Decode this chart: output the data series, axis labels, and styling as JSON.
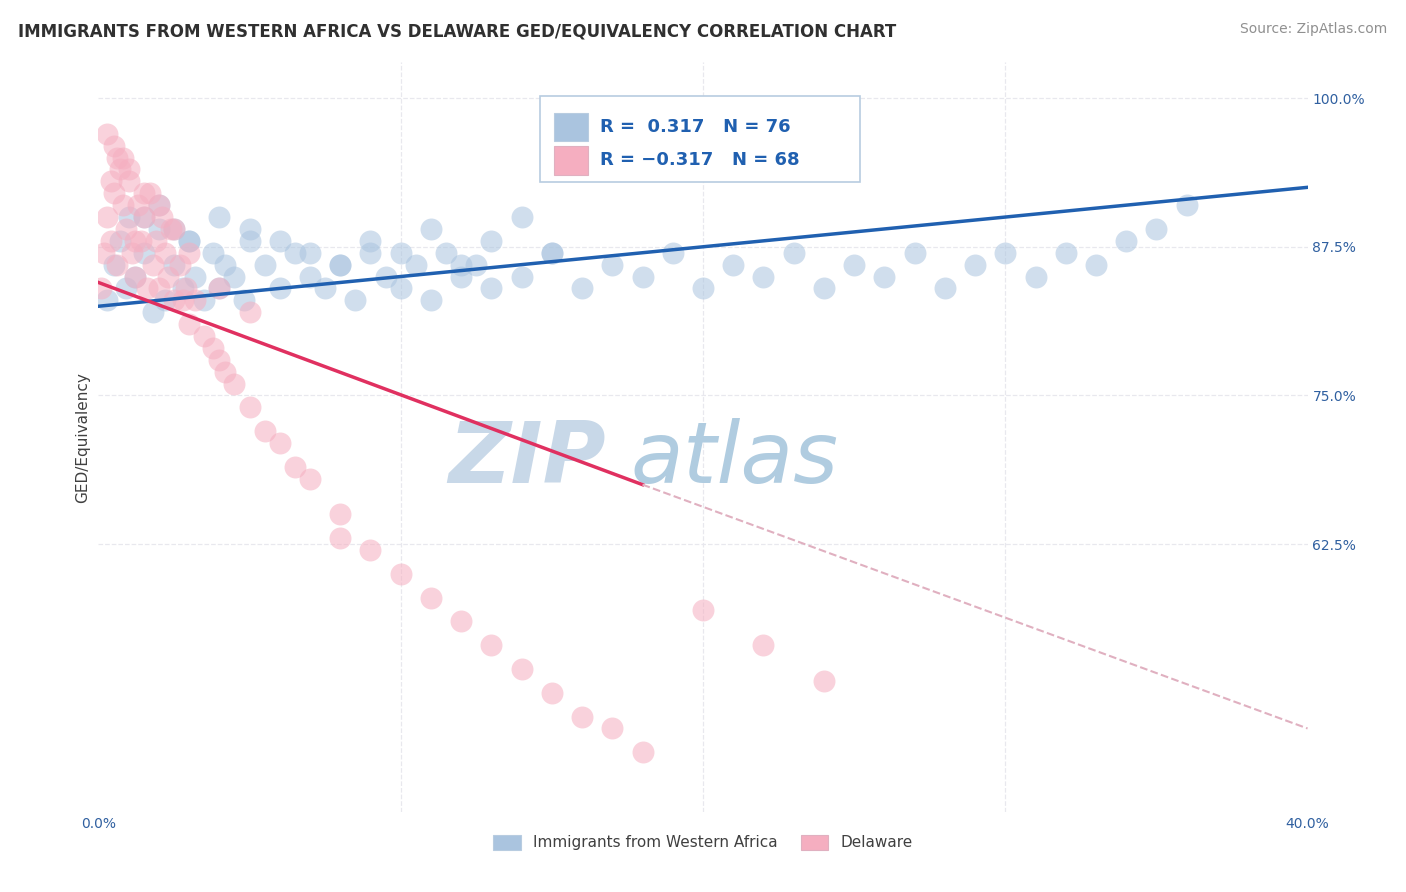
{
  "title": "IMMIGRANTS FROM WESTERN AFRICA VS DELAWARE GED/EQUIVALENCY CORRELATION CHART",
  "source_text": "Source: ZipAtlas.com",
  "ylabel": "GED/Equivalency",
  "xlim": [
    0.0,
    40.0
  ],
  "ylim": [
    40.0,
    103.0
  ],
  "blue_color": "#aac4df",
  "blue_edge_color": "#aac4df",
  "pink_color": "#f5aec0",
  "pink_edge_color": "#f5aec0",
  "trendline_blue_color": "#2060b0",
  "trendline_pink_color": "#e03060",
  "trendline_dash_color": "#e0b0c0",
  "grid_color": "#e8e8ee",
  "title_color": "#303030",
  "axis_tick_color": "#3060a0",
  "source_color": "#909090",
  "ylabel_color": "#404040",
  "legend_r_color": "#2060b0",
  "watermark_zip_color": "#c8d8e8",
  "watermark_atlas_color": "#b0cce0",
  "legend_border_color": "#b8cce0",
  "legend_bottom_label_color": "#404040",
  "blue_trendline_x0": 0.0,
  "blue_trendline_y0": 82.5,
  "blue_trendline_x1": 40.0,
  "blue_trendline_y1": 92.5,
  "pink_solid_x0": 0.0,
  "pink_solid_y0": 84.5,
  "pink_solid_x1": 18.0,
  "pink_solid_y1": 67.5,
  "pink_dash_x0": 18.0,
  "pink_dash_y0": 67.5,
  "pink_dash_x1": 40.0,
  "pink_dash_y1": 47.0,
  "blue_x": [
    0.3,
    0.5,
    0.7,
    0.9,
    1.0,
    1.2,
    1.5,
    1.8,
    2.0,
    2.2,
    2.5,
    2.8,
    3.0,
    3.2,
    3.5,
    3.8,
    4.0,
    4.2,
    4.5,
    4.8,
    5.0,
    5.5,
    6.0,
    6.5,
    7.0,
    7.5,
    8.0,
    8.5,
    9.0,
    9.5,
    10.0,
    10.5,
    11.0,
    11.5,
    12.0,
    12.5,
    13.0,
    14.0,
    15.0,
    16.0,
    17.0,
    18.0,
    19.0,
    20.0,
    21.0,
    22.0,
    23.0,
    24.0,
    25.0,
    26.0,
    27.0,
    28.0,
    29.0,
    30.0,
    31.0,
    32.0,
    33.0,
    34.0,
    35.0,
    36.0,
    1.5,
    2.0,
    2.5,
    3.0,
    4.0,
    5.0,
    6.0,
    7.0,
    8.0,
    9.0,
    10.0,
    11.0,
    12.0,
    13.0,
    14.0,
    15.0
  ],
  "blue_y": [
    83.0,
    86.0,
    88.0,
    84.0,
    90.0,
    85.0,
    87.0,
    82.0,
    89.0,
    83.0,
    86.0,
    84.0,
    88.0,
    85.0,
    83.0,
    87.0,
    84.0,
    86.0,
    85.0,
    83.0,
    88.0,
    86.0,
    84.0,
    87.0,
    85.0,
    84.0,
    86.0,
    83.0,
    87.0,
    85.0,
    84.0,
    86.0,
    83.0,
    87.0,
    85.0,
    86.0,
    84.0,
    85.0,
    87.0,
    84.0,
    86.0,
    85.0,
    87.0,
    84.0,
    86.0,
    85.0,
    87.0,
    84.0,
    86.0,
    85.0,
    87.0,
    84.0,
    86.0,
    87.0,
    85.0,
    87.0,
    86.0,
    88.0,
    89.0,
    91.0,
    90.0,
    91.0,
    89.0,
    88.0,
    90.0,
    89.0,
    88.0,
    87.0,
    86.0,
    88.0,
    87.0,
    89.0,
    86.0,
    88.0,
    90.0,
    87.0
  ],
  "pink_x": [
    0.1,
    0.2,
    0.3,
    0.4,
    0.5,
    0.6,
    0.7,
    0.8,
    0.9,
    1.0,
    1.1,
    1.2,
    1.3,
    1.4,
    1.5,
    1.6,
    1.7,
    1.8,
    1.9,
    2.0,
    2.1,
    2.2,
    2.3,
    2.4,
    2.5,
    2.7,
    2.9,
    3.0,
    3.2,
    3.5,
    3.8,
    4.0,
    4.2,
    4.5,
    5.0,
    5.5,
    6.0,
    6.5,
    7.0,
    8.0,
    9.0,
    10.0,
    11.0,
    12.0,
    13.0,
    14.0,
    15.0,
    16.0,
    17.0,
    18.0,
    0.3,
    0.5,
    0.8,
    1.0,
    1.5,
    2.0,
    2.5,
    3.0,
    4.0,
    5.0,
    0.4,
    0.6,
    1.2,
    2.8,
    8.0,
    20.0,
    22.0,
    24.0
  ],
  "pink_y": [
    84.0,
    87.0,
    90.0,
    88.0,
    92.0,
    86.0,
    94.0,
    91.0,
    89.0,
    93.0,
    87.0,
    85.0,
    91.0,
    88.0,
    90.0,
    84.0,
    92.0,
    86.0,
    88.0,
    84.0,
    90.0,
    87.0,
    85.0,
    89.0,
    83.0,
    86.0,
    84.0,
    81.0,
    83.0,
    80.0,
    79.0,
    78.0,
    77.0,
    76.0,
    74.0,
    72.0,
    71.0,
    69.0,
    68.0,
    65.0,
    62.0,
    60.0,
    58.0,
    56.0,
    54.0,
    52.0,
    50.0,
    48.0,
    47.0,
    45.0,
    97.0,
    96.0,
    95.0,
    94.0,
    92.0,
    91.0,
    89.0,
    87.0,
    84.0,
    82.0,
    93.0,
    95.0,
    88.0,
    83.0,
    63.0,
    57.0,
    54.0,
    51.0
  ]
}
